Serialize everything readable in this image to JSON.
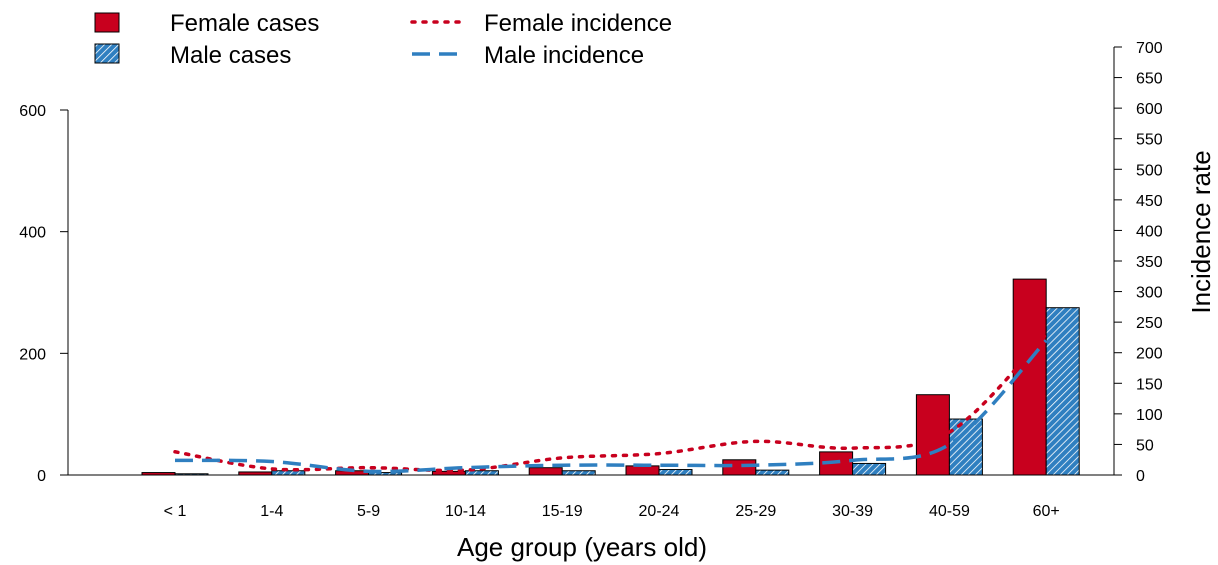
{
  "chart_data": {
    "type": "bar",
    "xlabel": "Age group (years old)",
    "ylabel_right": "Incidence rate",
    "categories": [
      "< 1",
      "1-4",
      "5-9",
      "10-14",
      "15-19",
      "20-24",
      "25-29",
      "30-39",
      "40-59",
      "60+"
    ],
    "left_axis": {
      "ylim": [
        0,
        600
      ],
      "ticks": [
        "0",
        "200",
        "400",
        "600"
      ]
    },
    "right_axis": {
      "ylim": [
        0,
        700
      ],
      "ticks": [
        "0",
        "50",
        "100",
        "150",
        "200",
        "250",
        "300",
        "350",
        "400",
        "450",
        "500",
        "550",
        "600",
        "650",
        "700"
      ]
    },
    "legend": {
      "female_cases": "Female cases",
      "male_cases": "Male cases",
      "female_incidence": "Female incidence",
      "male_incidence": "Male incidence"
    },
    "series": [
      {
        "name": "Female cases",
        "type": "bar",
        "axis": "left",
        "color": "#c8001e",
        "values": [
          4,
          5,
          7,
          6,
          12,
          15,
          25,
          38,
          132,
          322
        ]
      },
      {
        "name": "Male cases",
        "type": "bar",
        "axis": "left",
        "color": "#2f7fc0",
        "hatched": true,
        "values": [
          2,
          7,
          4,
          7,
          7,
          9,
          8,
          19,
          92,
          275
        ]
      },
      {
        "name": "Female incidence",
        "type": "line",
        "axis": "right",
        "style": "dotted",
        "color": "#c8001e",
        "values": [
          38,
          10,
          12,
          8,
          28,
          35,
          55,
          44,
          70,
          230
        ]
      },
      {
        "name": "Male incidence",
        "type": "line",
        "axis": "right",
        "style": "dashed",
        "color": "#2f7fc0",
        "values": [
          24,
          22,
          6,
          12,
          16,
          16,
          16,
          24,
          50,
          220
        ]
      }
    ]
  }
}
